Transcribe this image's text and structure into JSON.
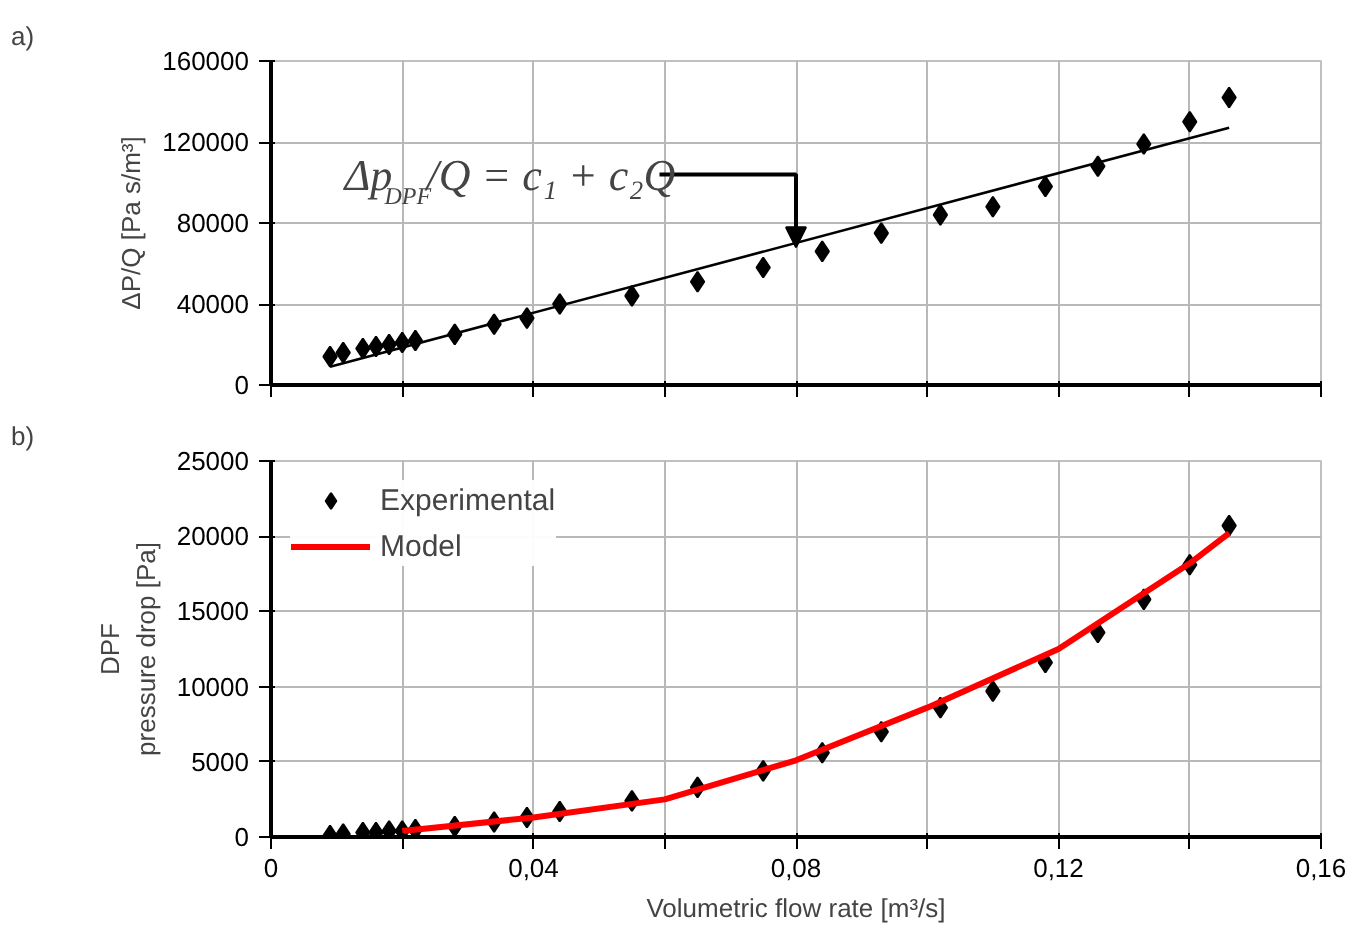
{
  "chart_data": [
    {
      "type": "scatter",
      "title": "a)",
      "ylabel": "ΔP/Q [Pa s/m³]",
      "tick_labels": "y",
      "grid": true,
      "xlim": [
        0,
        0.16
      ],
      "xticks": [
        0,
        0.02,
        0.04,
        0.06,
        0.08,
        0.1,
        0.12,
        0.14,
        0.16
      ],
      "ylim": [
        0,
        160000
      ],
      "yticks": [
        0,
        40000,
        80000,
        120000,
        160000
      ],
      "x": [
        0.009,
        0.011,
        0.014,
        0.016,
        0.018,
        0.02,
        0.022,
        0.028,
        0.034,
        0.039,
        0.044,
        0.055,
        0.065,
        0.075,
        0.084,
        0.093,
        0.102,
        0.11,
        0.118,
        0.126,
        0.133,
        0.14,
        0.146
      ],
      "series": [
        {
          "marker": "diamond",
          "color": "#000000",
          "values": [
            14000,
            16000,
            18000,
            19000,
            20000,
            21000,
            22000,
            25000,
            30000,
            33000,
            40000,
            44000,
            51000,
            58000,
            66000,
            75000,
            84000,
            88000,
            98000,
            108000,
            119000,
            130000,
            142000
          ]
        },
        {
          "type": "line",
          "color": "#000000",
          "x": [
            0.009,
            0.146
          ],
          "values": [
            9000,
            127000
          ]
        }
      ],
      "annotations": [
        {
          "text": "Δp$_{DPF}$/Q = c₁ + c₂Q",
          "x": 0.08,
          "y": 68000
        }
      ]
    },
    {
      "type": "scatter",
      "title": "b)",
      "ylabel": "DPF\npressure drop [Pa]",
      "xlabel": "Volumetric flow rate [m³/s]",
      "grid": true,
      "legend": "top left",
      "xlim": [
        0,
        0.16
      ],
      "xticks": [
        {
          "value": 0,
          "label": "0"
        },
        {
          "value": 0.02,
          "label": null
        },
        {
          "value": 0.04,
          "label": "0,04"
        },
        {
          "value": 0.06,
          "label": null
        },
        {
          "value": 0.08,
          "label": "0,08"
        },
        {
          "value": 0.1,
          "label": null
        },
        {
          "value": 0.12,
          "label": "0,12"
        },
        {
          "value": 0.14,
          "label": null
        },
        {
          "value": 0.16,
          "label": "0,16"
        }
      ],
      "ylim": [
        0,
        25000
      ],
      "yticks": [
        0,
        5000,
        10000,
        15000,
        20000,
        25000
      ],
      "x": [
        0.009,
        0.011,
        0.014,
        0.016,
        0.018,
        0.02,
        0.022,
        0.028,
        0.034,
        0.039,
        0.044,
        0.055,
        0.065,
        0.075,
        0.084,
        0.093,
        0.102,
        0.11,
        0.118,
        0.126,
        0.133,
        0.14,
        0.146
      ],
      "series": [
        {
          "name": "Experimental",
          "marker": "diamond",
          "color": "#000000",
          "values": [
            100,
            200,
            300,
            300,
            400,
            400,
            500,
            700,
            1000,
            1300,
            1700,
            2400,
            3300,
            4400,
            5600,
            7000,
            8600,
            9700,
            11600,
            13600,
            15800,
            18100,
            20700
          ]
        },
        {
          "type": "line",
          "name": "Model",
          "color": "#ff0000",
          "x": [
            0.02,
            0.04,
            0.06,
            0.08,
            0.1,
            0.12,
            0.14,
            0.146
          ],
          "values": [
            400,
            1300,
            2500,
            5100,
            8600,
            12500,
            18200,
            20200
          ]
        }
      ]
    }
  ]
}
